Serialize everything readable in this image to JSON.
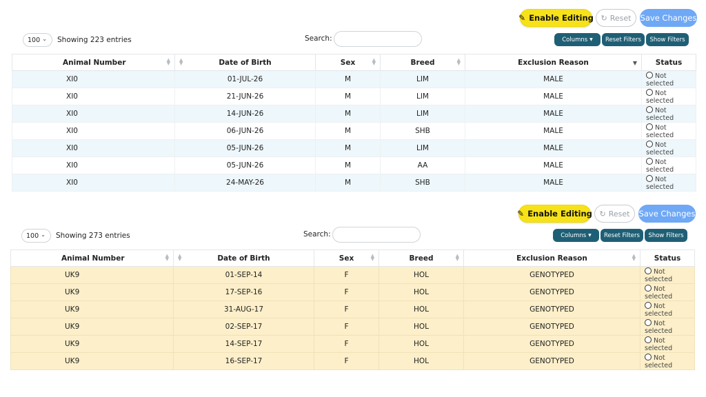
{
  "tables": [
    {
      "toolbar": {
        "enable_editing": "Enable Editing",
        "reset": "Reset",
        "save_changes": "Save Changes",
        "columns": "Columns",
        "reset_filters": "Reset Filters",
        "show_filters": "Show Filters"
      },
      "length_value": "100",
      "info": "Showing 223 entries",
      "search_label": "Search:",
      "search_value": "",
      "headers": [
        "Animal Number",
        "Date of Birth",
        "Sex",
        "Breed",
        "Exclusion Reason",
        "Status"
      ],
      "sorted_column": "Exclusion Reason",
      "rows": [
        [
          "XI0",
          "01-JUL-26",
          "M",
          "LIM",
          "MALE",
          "Not selected"
        ],
        [
          "XI0",
          "21-JUN-26",
          "M",
          "LIM",
          "MALE",
          "Not selected"
        ],
        [
          "XI0",
          "14-JUN-26",
          "M",
          "LIM",
          "MALE",
          "Not selected"
        ],
        [
          "XI0",
          "06-JUN-26",
          "M",
          "SHB",
          "MALE",
          "Not selected"
        ],
        [
          "XI0",
          "05-JUN-26",
          "M",
          "LIM",
          "MALE",
          "Not selected"
        ],
        [
          "XI0",
          "05-JUN-26",
          "M",
          "AA",
          "MALE",
          "Not selected"
        ],
        [
          "XI0",
          "24-MAY-26",
          "M",
          "SHB",
          "MALE",
          "Not selected"
        ]
      ]
    },
    {
      "toolbar": {
        "enable_editing": "Enable Editing",
        "reset": "Reset",
        "save_changes": "Save Changes",
        "columns": "Columns",
        "reset_filters": "Reset Filters",
        "show_filters": "Show Filters"
      },
      "length_value": "100",
      "info": "Showing 273 entries",
      "search_label": "Search:",
      "search_value": "",
      "headers": [
        "Animal Number",
        "Date of Birth",
        "Sex",
        "Breed",
        "Exclusion Reason",
        "Status"
      ],
      "sorted_column": "",
      "rows": [
        [
          "UK9",
          "01-SEP-14",
          "F",
          "HOL",
          "GENOTYPED",
          "Not selected"
        ],
        [
          "UK9",
          "17-SEP-16",
          "F",
          "HOL",
          "GENOTYPED",
          "Not selected"
        ],
        [
          "UK9",
          "31-AUG-17",
          "F",
          "HOL",
          "GENOTYPED",
          "Not selected"
        ],
        [
          "UK9",
          "02-SEP-17",
          "F",
          "HOL",
          "GENOTYPED",
          "Not selected"
        ],
        [
          "UK9",
          "14-SEP-17",
          "F",
          "HOL",
          "GENOTYPED",
          "Not selected"
        ],
        [
          "UK9",
          "16-SEP-17",
          "F",
          "HOL",
          "GENOTYPED",
          "Not selected"
        ]
      ]
    }
  ],
  "icons": {
    "edit": "pencil-icon",
    "reset": "refresh-icon",
    "length": "chevron-down-icon",
    "columns_caret": "caret-down-icon",
    "sort": "sort-icon",
    "status": "radio-icon"
  },
  "colors": {
    "enable_editing_bg": "#f7e21a",
    "save_bg": "#6fa8f5",
    "dark_button_bg": "#1f5f75",
    "row_stripe_blue": "#eef7fb",
    "row_highlight_yellow": "#fcefc9"
  }
}
